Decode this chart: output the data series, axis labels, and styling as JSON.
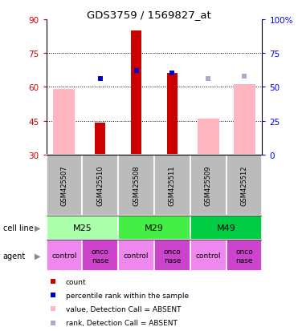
{
  "title": "GDS3759 / 1569827_at",
  "samples": [
    "GSM425507",
    "GSM425510",
    "GSM425508",
    "GSM425511",
    "GSM425509",
    "GSM425512"
  ],
  "agents": [
    "control",
    "onconase",
    "control",
    "onconase",
    "control",
    "onconase"
  ],
  "cell_groups": [
    {
      "label": "M25",
      "start": 0,
      "end": 1,
      "color": "#aaffaa"
    },
    {
      "label": "M29",
      "start": 2,
      "end": 3,
      "color": "#44ee44"
    },
    {
      "label": "M49",
      "start": 4,
      "end": 5,
      "color": "#00cc44"
    }
  ],
  "ylim_left": [
    30,
    90
  ],
  "ylim_right": [
    0,
    100
  ],
  "yticks_left": [
    30,
    45,
    60,
    75,
    90
  ],
  "yticks_right": [
    0,
    25,
    50,
    75,
    100
  ],
  "hlines": [
    45,
    60,
    75
  ],
  "count_values": [
    null,
    44,
    85,
    66,
    null,
    null
  ],
  "rank_pct_values": [
    null,
    56,
    62,
    60,
    null,
    null
  ],
  "pink_bar_top": [
    59,
    null,
    null,
    null,
    46,
    61
  ],
  "light_blue_pct": [
    null,
    null,
    null,
    null,
    56,
    58
  ],
  "count_color": "#cc0000",
  "rank_color": "#0000cc",
  "pink_color": "#ffb6c1",
  "light_blue_color": "#aaaacc",
  "sample_bg_color": "#bbbbbb",
  "agent_control_color": "#ee88ee",
  "agent_onconase_color": "#cc44cc"
}
